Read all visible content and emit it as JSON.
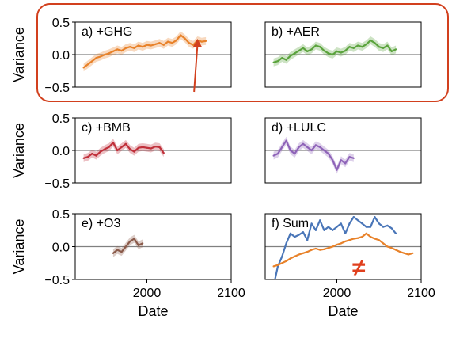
{
  "chart_data": [
    {
      "type": "line",
      "panel_label": "a) +GHG",
      "ylabel": "Variance",
      "xlabel": "",
      "ylim": [
        -0.5,
        0.5
      ],
      "xlim": [
        1915,
        2100
      ],
      "yticks": [
        "0.5",
        "0.0",
        "−0.5"
      ],
      "xticks": [],
      "color": "#e8822a",
      "band": true,
      "highlighted": true,
      "arrow": true,
      "series": [
        {
          "x": [
            1925,
            1930,
            1935,
            1940,
            1945,
            1950,
            1955,
            1960,
            1965,
            1970,
            1975,
            1980,
            1985,
            1990,
            1995,
            2000,
            2005,
            2010,
            2015,
            2020,
            2025,
            2030,
            2035,
            2040,
            2045,
            2050,
            2055,
            2060,
            2065,
            2070
          ],
          "y": [
            -0.2,
            -0.15,
            -0.1,
            -0.05,
            -0.03,
            0.0,
            0.02,
            0.05,
            0.08,
            0.06,
            0.1,
            0.12,
            0.1,
            0.14,
            0.12,
            0.15,
            0.14,
            0.16,
            0.18,
            0.15,
            0.2,
            0.18,
            0.22,
            0.3,
            0.25,
            0.18,
            0.15,
            0.22,
            0.2,
            0.21
          ]
        }
      ]
    },
    {
      "type": "line",
      "panel_label": "b) +AER",
      "ylabel": "",
      "xlabel": "",
      "ylim": [
        -0.5,
        0.5
      ],
      "xlim": [
        1915,
        2100
      ],
      "yticks": [],
      "xticks": [],
      "color": "#5aa33c",
      "band": true,
      "highlighted": true,
      "series": [
        {
          "x": [
            1925,
            1930,
            1935,
            1940,
            1945,
            1950,
            1955,
            1960,
            1965,
            1970,
            1975,
            1980,
            1985,
            1990,
            1995,
            2000,
            2005,
            2010,
            2015,
            2020,
            2025,
            2030,
            2035,
            2040,
            2045,
            2050,
            2055,
            2060,
            2065,
            2070
          ],
          "y": [
            -0.12,
            -0.1,
            -0.05,
            -0.08,
            -0.02,
            0.02,
            0.06,
            0.1,
            0.05,
            0.08,
            0.14,
            0.12,
            0.06,
            0.02,
            0.0,
            0.05,
            0.03,
            0.06,
            0.12,
            0.1,
            0.14,
            0.12,
            0.16,
            0.22,
            0.18,
            0.12,
            0.1,
            0.14,
            0.05,
            0.08
          ]
        }
      ]
    },
    {
      "type": "line",
      "panel_label": "c) +BMB",
      "ylabel": "Variance",
      "xlabel": "",
      "ylim": [
        -0.5,
        0.5
      ],
      "xlim": [
        1915,
        2100
      ],
      "yticks": [
        "0.5",
        "0.0",
        "−0.5"
      ],
      "xticks": [],
      "color": "#c0303a",
      "band": true,
      "series": [
        {
          "x": [
            1925,
            1930,
            1935,
            1940,
            1945,
            1950,
            1955,
            1960,
            1965,
            1970,
            1975,
            1980,
            1985,
            1990,
            1995,
            2000,
            2005,
            2010,
            2015,
            2020
          ],
          "y": [
            -0.12,
            -0.1,
            -0.05,
            -0.08,
            -0.02,
            0.02,
            0.05,
            0.12,
            0.0,
            0.05,
            0.1,
            0.02,
            -0.02,
            0.04,
            0.05,
            0.04,
            0.03,
            0.06,
            0.05,
            -0.04
          ]
        }
      ]
    },
    {
      "type": "line",
      "panel_label": "d) +LULC",
      "ylabel": "",
      "xlabel": "",
      "ylim": [
        -0.5,
        0.5
      ],
      "xlim": [
        1915,
        2100
      ],
      "yticks": [],
      "xticks": [],
      "color": "#8e63b8",
      "band": true,
      "series": [
        {
          "x": [
            1925,
            1930,
            1935,
            1940,
            1945,
            1950,
            1955,
            1960,
            1965,
            1970,
            1975,
            1980,
            1985,
            1990,
            1995,
            2000,
            2005,
            2010,
            2015,
            2020
          ],
          "y": [
            -0.08,
            -0.05,
            0.05,
            0.15,
            0.0,
            -0.05,
            0.05,
            0.1,
            0.05,
            0.0,
            0.08,
            0.05,
            0.0,
            -0.05,
            -0.15,
            -0.3,
            -0.15,
            -0.2,
            -0.1,
            -0.12
          ]
        }
      ]
    },
    {
      "type": "line",
      "panel_label": "e) +O3",
      "ylabel": "Variance",
      "xlabel": "Date",
      "ylim": [
        -0.5,
        0.5
      ],
      "xlim": [
        1915,
        2100
      ],
      "yticks": [
        "0.5",
        "0.0",
        "−0.5"
      ],
      "xticks": [
        "2000",
        "2100"
      ],
      "xtick_values": [
        2000,
        2100
      ],
      "color": "#8a5a4a",
      "band": true,
      "series": [
        {
          "x": [
            1960,
            1965,
            1970,
            1975,
            1980,
            1985,
            1990,
            1995
          ],
          "y": [
            -0.1,
            -0.05,
            -0.08,
            0.0,
            0.08,
            0.12,
            0.02,
            0.05
          ]
        }
      ]
    },
    {
      "type": "line",
      "panel_label": "f) Sum",
      "ylabel": "",
      "xlabel": "Date",
      "ylim": [
        -0.5,
        0.5
      ],
      "xlim": [
        1915,
        2100
      ],
      "yticks": [],
      "xticks": [
        "2000",
        "2100"
      ],
      "xtick_values": [
        2000,
        2100
      ],
      "band": false,
      "annotation": "≠",
      "annotation_color": "#e0401e",
      "series": [
        {
          "color": "#4a76b8",
          "x": [
            1925,
            1930,
            1935,
            1940,
            1945,
            1950,
            1955,
            1960,
            1965,
            1970,
            1975,
            1980,
            1985,
            1990,
            1995,
            2000,
            2005,
            2010,
            2015,
            2020,
            2025,
            2030,
            2035,
            2040,
            2045,
            2050,
            2055,
            2060,
            2065,
            2070
          ],
          "y": [
            -0.6,
            -0.3,
            -0.15,
            0.05,
            0.2,
            0.15,
            0.18,
            0.22,
            0.1,
            0.35,
            0.25,
            0.4,
            0.25,
            0.3,
            0.25,
            0.3,
            0.35,
            0.2,
            0.35,
            0.45,
            0.4,
            0.35,
            0.3,
            0.3,
            0.45,
            0.35,
            0.3,
            0.32,
            0.28,
            0.2
          ]
        },
        {
          "color": "#e8822a",
          "x": [
            1925,
            1930,
            1935,
            1940,
            1945,
            1950,
            1955,
            1960,
            1965,
            1970,
            1975,
            1980,
            1985,
            1990,
            1995,
            2000,
            2005,
            2010,
            2015,
            2020,
            2025,
            2030,
            2035,
            2040,
            2045,
            2050,
            2055,
            2060,
            2065,
            2070,
            2075,
            2080,
            2085,
            2090
          ],
          "y": [
            -0.3,
            -0.28,
            -0.25,
            -0.22,
            -0.18,
            -0.15,
            -0.12,
            -0.1,
            -0.08,
            -0.05,
            -0.03,
            -0.05,
            -0.04,
            -0.02,
            0.0,
            0.03,
            0.05,
            0.08,
            0.1,
            0.12,
            0.13,
            0.15,
            0.2,
            0.15,
            0.12,
            0.1,
            0.05,
            0.0,
            -0.02,
            -0.05,
            -0.08,
            -0.1,
            -0.12,
            -0.1
          ]
        }
      ]
    }
  ]
}
